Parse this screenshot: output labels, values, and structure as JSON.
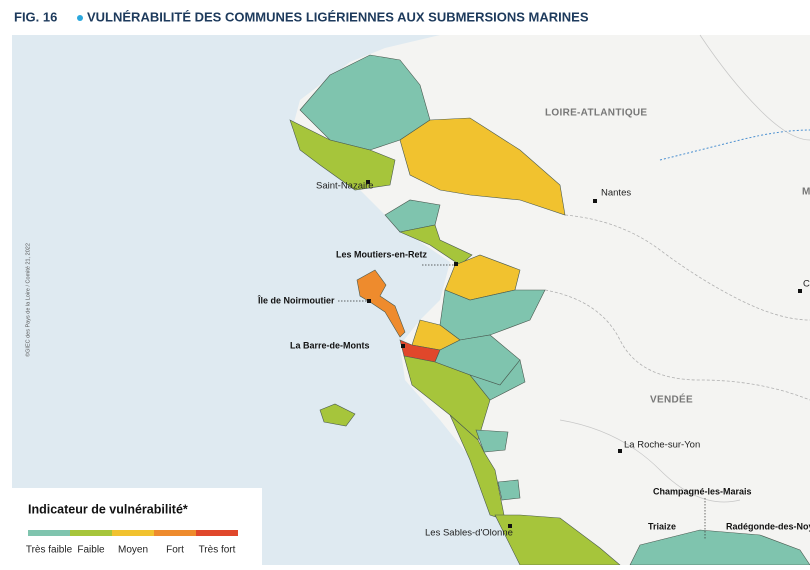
{
  "header": {
    "number": "FIG. 16",
    "title": "VULNÉRABILITÉ DES COMMUNES LIGÉRIENNES AUX SUBMERSIONS MARINES"
  },
  "credit": "©GIEC des Pays de la Loire / Comité 21, 2022",
  "map": {
    "regions": [
      "LOIRE-ATLANTIQUE",
      "VENDÉE",
      "M"
    ],
    "places": [
      "Saint-Nazaire",
      "Nantes",
      "Les Moutiers-en-Retz",
      "Île de Noirmoutier",
      "La Barre-de-Monts",
      "La Roche-sur-Yon",
      "Champagné-les-Marais",
      "Triaize",
      "Radégonde-des-Noy",
      "Les Sables-d'Olonne",
      "Ch"
    ]
  },
  "legend": {
    "title": "Indicateur de vulnérabilité*",
    "classes": [
      {
        "label": "Très faible",
        "color": "#7fc4ae"
      },
      {
        "label": "Faible",
        "color": "#a6c53b"
      },
      {
        "label": "Moyen",
        "color": "#f1c22f"
      },
      {
        "label": "Fort",
        "color": "#ee8b2d"
      },
      {
        "label": "Très fort",
        "color": "#e0472b"
      }
    ]
  }
}
